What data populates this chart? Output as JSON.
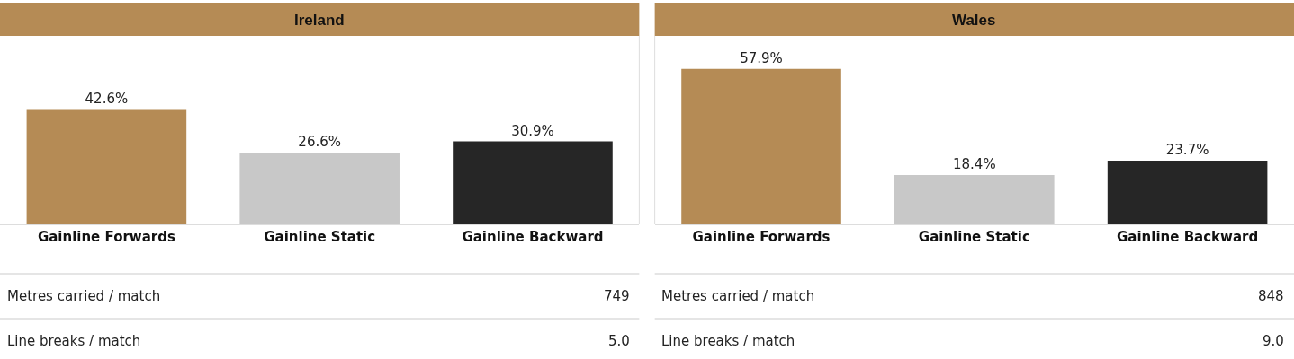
{
  "chart_data": [
    {
      "type": "bar",
      "title": "Ireland",
      "categories": [
        "Gainline Forwards",
        "Gainline Static",
        "Gainline Backward"
      ],
      "values": [
        42.6,
        26.6,
        30.9
      ],
      "colors": [
        "#b58b55",
        "#c8c8c8",
        "#262626"
      ],
      "value_labels": [
        "42.6%",
        "26.6%",
        "30.9%"
      ],
      "annotations": [
        "Metres carried / match",
        "749",
        "Line breaks / match",
        "5.0"
      ]
    },
    {
      "type": "bar",
      "title": "Wales",
      "categories": [
        "Gainline Forwards",
        "Gainline Static",
        "Gainline Backward"
      ],
      "values": [
        57.9,
        18.4,
        23.7
      ],
      "colors": [
        "#b58b55",
        "#c8c8c8",
        "#262626"
      ],
      "value_labels": [
        "57.9%",
        "18.4%",
        "23.7%"
      ],
      "annotations": [
        "Metres carried / match",
        "848",
        "Line breaks / match",
        "9.0"
      ]
    }
  ]
}
